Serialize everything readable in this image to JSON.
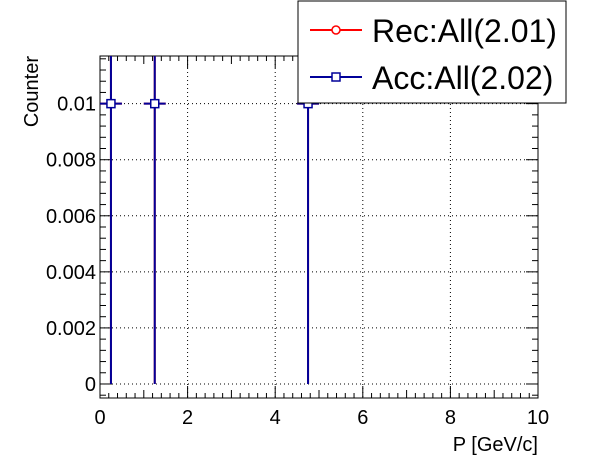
{
  "chart_data": {
    "type": "scatter",
    "title": "",
    "xlabel": "P [GeV/c]",
    "ylabel": "Counter",
    "xlim": [
      0,
      10
    ],
    "ylim": [
      -0.0005,
      0.0117
    ],
    "xticks": [
      0,
      2,
      4,
      6,
      8,
      10
    ],
    "yticks": [
      0,
      0.002,
      0.004,
      0.006,
      0.008,
      0.01
    ],
    "ytick_labels": [
      "0",
      "0.002",
      "0.004",
      "0.006",
      "0.008",
      "0.01"
    ],
    "grid": true,
    "legend_position": "top-right",
    "series": [
      {
        "name": "Rec:All(2.01)",
        "color": "#ff0000",
        "marker": "circle",
        "points": [
          {
            "x": 0.25,
            "y": 0.01,
            "xerr": 0.25,
            "yerr": 0.01
          },
          {
            "x": 1.25,
            "y": 0.01,
            "xerr": 0.25,
            "yerr": 0.01
          },
          {
            "x": 4.75,
            "y": 0.01,
            "xerr": 0.25,
            "yerr": 0.01
          }
        ]
      },
      {
        "name": "Acc:All(2.02)",
        "color": "#000099",
        "marker": "square",
        "points": [
          {
            "x": 0.25,
            "y": 0.01,
            "xerr": 0.25,
            "yerr": 0.01
          },
          {
            "x": 1.25,
            "y": 0.01,
            "xerr": 0.25,
            "yerr": 0.01
          },
          {
            "x": 4.75,
            "y": 0.01,
            "xerr": 0.25,
            "yerr": 0.01
          }
        ]
      }
    ]
  }
}
